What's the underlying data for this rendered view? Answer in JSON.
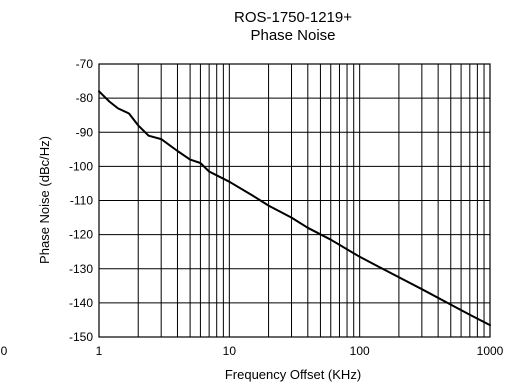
{
  "chart_data": {
    "type": "line",
    "title": "ROS-1750-1219+",
    "subtitle": "Phase Noise",
    "xlabel": "Frequency Offset (KHz)",
    "ylabel": "Phase Noise (dBc/Hz)",
    "x_scale": "log",
    "xlim": [
      1,
      1000
    ],
    "ylim": [
      -150,
      -70
    ],
    "x_ticks": [
      1,
      10,
      100,
      1000
    ],
    "x_tick_labels": [
      "1",
      "10",
      "100",
      "1000"
    ],
    "y_ticks": [
      -70,
      -80,
      -90,
      -100,
      -110,
      -120,
      -130,
      -140,
      -150
    ],
    "y_tick_labels": [
      "-70",
      "-80",
      "-90",
      "-100",
      "-110",
      "-120",
      "-130",
      "-140",
      "-150"
    ],
    "stray_label": "0",
    "grid": true,
    "series": [
      {
        "x": [
          1,
          1.2,
          1.4,
          1.7,
          2.0,
          2.4,
          3,
          4,
          5,
          6,
          7,
          10,
          15,
          20,
          30,
          40,
          60,
          100,
          150,
          200,
          300,
          500,
          700,
          1000
        ],
        "y": [
          -78,
          -81,
          -83,
          -84.5,
          -88,
          -91,
          -92,
          -95.5,
          -98,
          -99,
          -101.5,
          -104.5,
          -108.5,
          -111.5,
          -115,
          -118,
          -121.5,
          -126.5,
          -130,
          -132.5,
          -136,
          -140.5,
          -143.5,
          -146.5
        ]
      }
    ],
    "colors": {
      "line": "#000000",
      "grid": "#000000",
      "background": "#ffffff"
    }
  }
}
